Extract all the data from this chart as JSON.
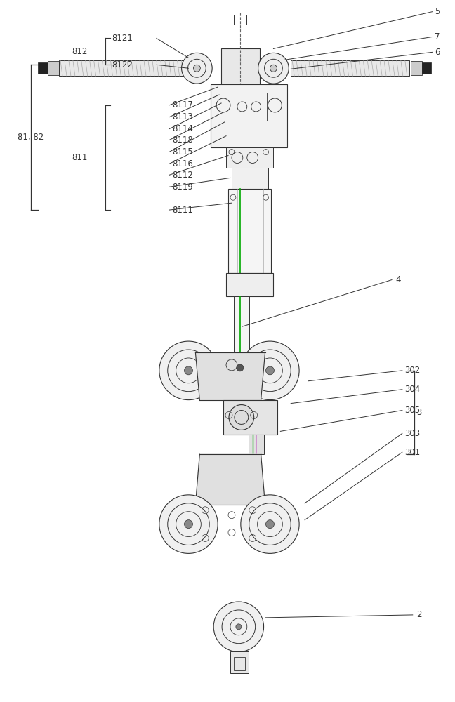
{
  "bg_color": "#ffffff",
  "line_color": "#333333",
  "green_color": "#00aa00",
  "pink_color": "#cc88cc",
  "fig_width": 6.48,
  "fig_height": 10.0
}
